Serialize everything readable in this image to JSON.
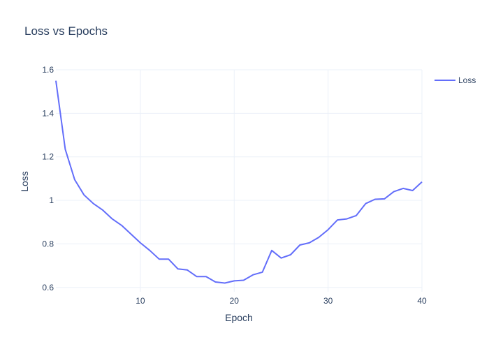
{
  "chart_data": {
    "type": "line",
    "title": "Loss vs Epochs",
    "xlabel": "Epoch",
    "ylabel": "Loss",
    "xlim": [
      1,
      40
    ],
    "ylim": [
      0.58,
      1.6
    ],
    "xticks": [
      10,
      20,
      30,
      40
    ],
    "yticks": [
      0.6,
      0.8,
      1,
      1.2,
      1.4,
      1.6
    ],
    "grid": true,
    "legend_position": "top-right",
    "series": [
      {
        "name": "Loss",
        "color": "#636efa",
        "x": [
          1,
          2,
          3,
          4,
          5,
          6,
          7,
          8,
          9,
          10,
          11,
          12,
          13,
          14,
          15,
          16,
          17,
          18,
          19,
          20,
          21,
          22,
          23,
          24,
          25,
          26,
          27,
          28,
          29,
          30,
          31,
          32,
          33,
          34,
          35,
          36,
          37,
          38,
          39,
          40
        ],
        "values": [
          1.55,
          1.235,
          1.095,
          1.025,
          0.985,
          0.955,
          0.915,
          0.885,
          0.845,
          0.805,
          0.77,
          0.73,
          0.73,
          0.685,
          0.68,
          0.65,
          0.65,
          0.625,
          0.62,
          0.63,
          0.633,
          0.658,
          0.67,
          0.77,
          0.735,
          0.75,
          0.795,
          0.805,
          0.83,
          0.865,
          0.91,
          0.915,
          0.93,
          0.985,
          1.005,
          1.007,
          1.04,
          1.055,
          1.045,
          1.085
        ]
      }
    ]
  }
}
